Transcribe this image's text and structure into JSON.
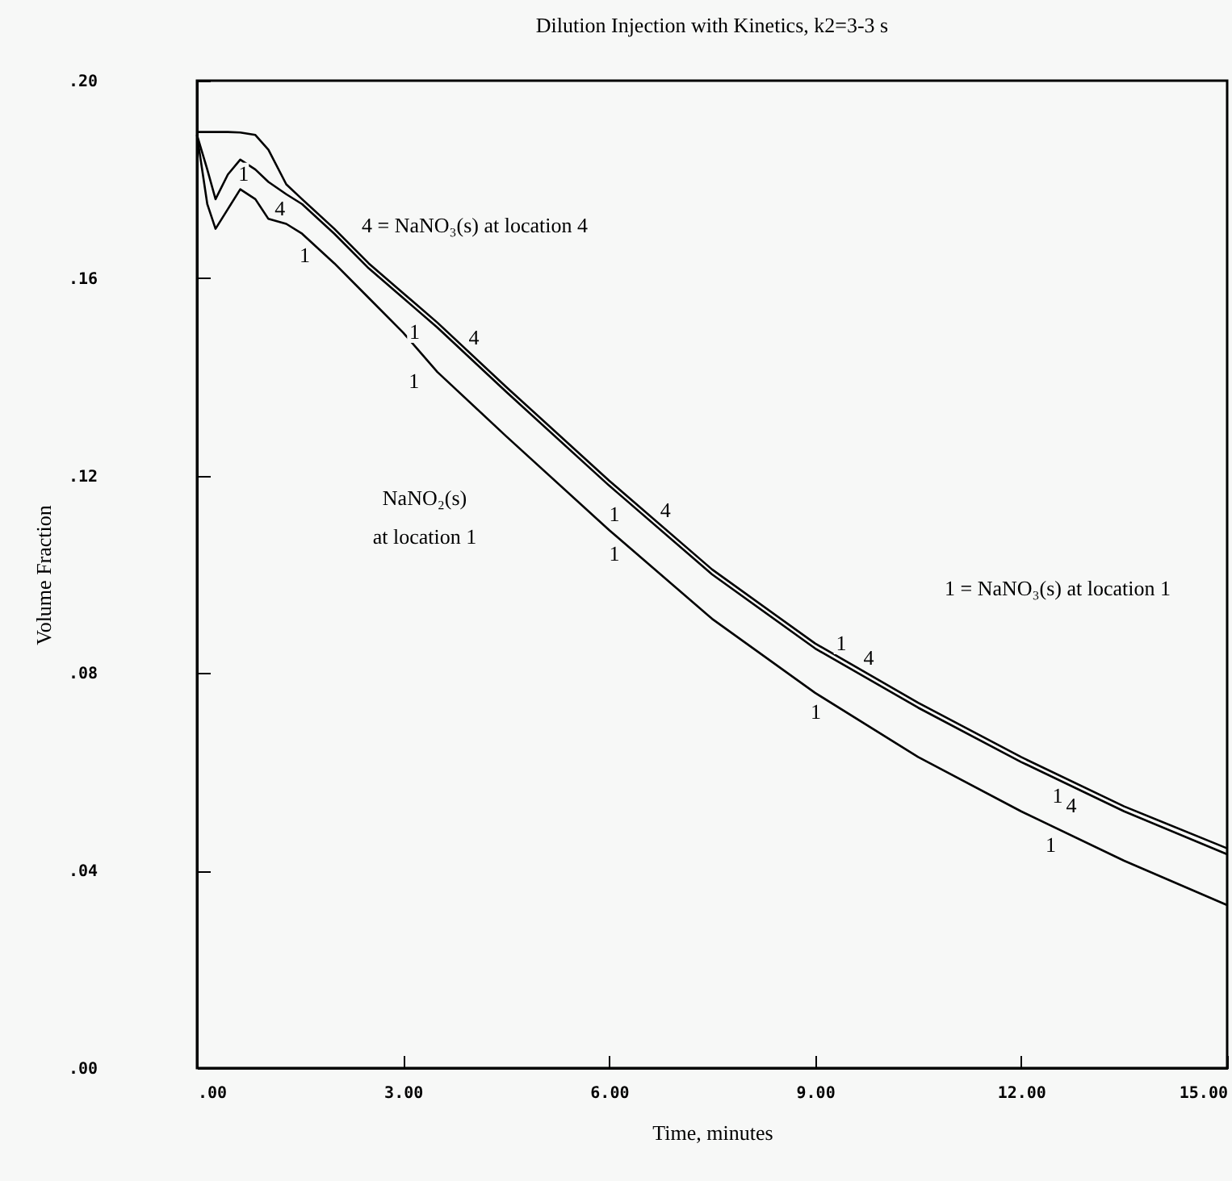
{
  "chart_data": {
    "type": "line",
    "title": "Dilution Injection with Kinetics, k2=3-3 s",
    "xlabel": "Time, minutes",
    "ylabel": "Volume Fraction",
    "x": [
      0,
      0.15,
      0.27,
      0.45,
      0.63,
      0.85,
      1.04,
      1.3,
      1.53,
      2,
      2.5,
      3,
      3.5,
      4.5,
      6,
      7.5,
      9,
      10.5,
      12,
      13.5,
      15
    ],
    "series": [
      {
        "color": "#000000",
        "values": [
          0.189,
          0.182,
          0.176,
          0.181,
          0.184,
          0.182,
          0.1795,
          0.177,
          0.175,
          0.169,
          0.162,
          0.156,
          0.15,
          0.137,
          0.118,
          0.1,
          0.085,
          0.073,
          0.062,
          0.052,
          0.0433
        ]
      },
      {
        "color": "#000000",
        "values": [
          0.1896,
          0.1896,
          0.1896,
          0.1896,
          0.1895,
          0.189,
          0.186,
          0.179,
          0.176,
          0.17,
          0.163,
          0.157,
          0.151,
          0.138,
          0.119,
          0.101,
          0.086,
          0.074,
          0.063,
          0.053,
          0.0445
        ]
      },
      {
        "color": "#000000",
        "values": [
          0.189,
          0.175,
          0.17,
          0.174,
          0.178,
          0.176,
          0.172,
          0.171,
          0.169,
          0.163,
          0.156,
          0.149,
          0.141,
          0.128,
          0.109,
          0.091,
          0.076,
          0.063,
          0.052,
          0.042,
          0.033
        ]
      }
    ],
    "xlim": [
      0,
      15
    ],
    "ylim": [
      0,
      0.2
    ],
    "xticks": [
      {
        "value": 0,
        "label": ".00"
      },
      {
        "value": 3,
        "label": "3.00"
      },
      {
        "value": 6,
        "label": "6.00"
      },
      {
        "value": 9,
        "label": "9.00"
      },
      {
        "value": 12,
        "label": "12.00"
      },
      {
        "value": 15,
        "label": "15.00"
      }
    ],
    "yticks": [
      {
        "value": 0,
        "label": ".00"
      },
      {
        "value": 0.04,
        "label": ".04"
      },
      {
        "value": 0.08,
        "label": ".08"
      },
      {
        "value": 0.12,
        "label": ".12"
      },
      {
        "value": 0.16,
        "label": ".16"
      },
      {
        "value": 0.2,
        "label": ".20"
      }
    ],
    "annotations": [
      "4 = NaNO₃(s) at location 4",
      "1 = NaNO₃(s) at location 1",
      "NaNO₂(s)",
      "at location 1",
      {
        "text": "1",
        "x": 0.6,
        "y": 0.184
      },
      {
        "text": "1",
        "x": 3.29,
        "y": 0.152
      },
      {
        "text": "1",
        "x": 6.2,
        "y": 0.115
      },
      {
        "text": "1",
        "x": 9.3,
        "y": 0.083
      },
      {
        "text": "1",
        "x": 12.6,
        "y": 0.058
      },
      {
        "text": "4",
        "x": 1.3,
        "y": 0.177
      },
      {
        "text": "4",
        "x": 3.9,
        "y": 0.145
      },
      {
        "text": "4",
        "x": 6.7,
        "y": 0.11
      },
      {
        "text": "4",
        "x": 9.7,
        "y": 0.08
      },
      {
        "text": "4",
        "x": 12.8,
        "y": 0.056
      },
      {
        "text": "1",
        "x": 1.7,
        "y": 0.1675
      },
      {
        "text": "1",
        "x": 3.3,
        "y": 0.142
      },
      {
        "text": "1",
        "x": 6.2,
        "y": 0.107
      },
      {
        "text": "1",
        "x": 9.1,
        "y": 0.075
      },
      {
        "text": "1",
        "x": 12.5,
        "y": 0.048
      }
    ]
  }
}
